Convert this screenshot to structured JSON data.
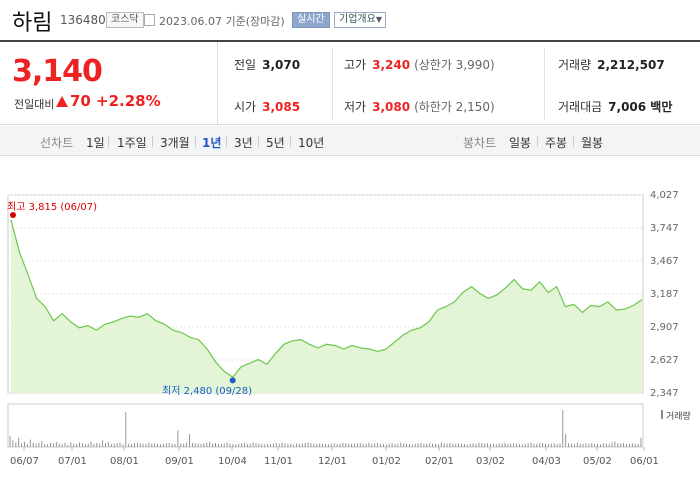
{
  "header": {
    "name": "하림",
    "code": "136480",
    "market": "코스닥",
    "date_text": "2023.06.07  기준(장마감)",
    "realtime": "실시간",
    "select": "기업개요"
  },
  "summary": {
    "price": "3,140",
    "change_label": "전일대비",
    "change_value": "70",
    "change_pct": "+2.28%",
    "prev_label": "전일",
    "prev_value": "3,070",
    "high_label": "고가",
    "high_value": "3,240",
    "upper_limit": "(상한가 3,990)",
    "volume_label": "거래량",
    "volume_value": "2,212,507",
    "open_label": "시가",
    "open_value": "3,085",
    "low_label": "저가",
    "low_value": "3,080",
    "lower_limit": "(하한가 2,150)",
    "amount_label": "거래대금",
    "amount_value": "7,006 백만"
  },
  "period_bar": {
    "line_label": "선차트",
    "periods": [
      "1일",
      "1주일",
      "3개월",
      "1년",
      "3년",
      "5년",
      "10년"
    ],
    "active_index": 3,
    "candle_label": "봉차트",
    "candles": [
      "일봉",
      "주봉",
      "월봉"
    ]
  },
  "chart_data": {
    "type": "area",
    "y_ticks": [
      "4,027",
      "3,747",
      "3,467",
      "3,187",
      "2,907",
      "2,627",
      "2,347"
    ],
    "ylim": [
      2347,
      4027
    ],
    "x_ticks": [
      "06/07",
      "07/01",
      "08/01",
      "09/01",
      "10/04",
      "11/01",
      "12/01",
      "01/02",
      "02/01",
      "03/02",
      "04/03",
      "05/02",
      "06/01"
    ],
    "high_annotation": "최고  3,815 (06/07)",
    "low_annotation": "최저  2,480 (09/28)",
    "volume_label": "거래량",
    "colors": {
      "line": "#6ec64e",
      "fill": "#e3f5d6",
      "high": "#d80000",
      "low": "#1a5fc8",
      "volume": "#888888"
    },
    "points": [
      [
        "06/07",
        3815
      ],
      [
        "06/09",
        3540
      ],
      [
        "06/13",
        3350
      ],
      [
        "06/16",
        3150
      ],
      [
        "06/20",
        3080
      ],
      [
        "06/23",
        2960
      ],
      [
        "06/28",
        3020
      ],
      [
        "07/03",
        2950
      ],
      [
        "07/07",
        2900
      ],
      [
        "07/12",
        2920
      ],
      [
        "07/18",
        2880
      ],
      [
        "07/24",
        2930
      ],
      [
        "07/28",
        2950
      ],
      [
        "08/01",
        2980
      ],
      [
        "08/04",
        3000
      ],
      [
        "08/09",
        2990
      ],
      [
        "08/14",
        3020
      ],
      [
        "08/18",
        2960
      ],
      [
        "08/23",
        2930
      ],
      [
        "08/28",
        2880
      ],
      [
        "09/01",
        2860
      ],
      [
        "09/06",
        2820
      ],
      [
        "09/12",
        2800
      ],
      [
        "09/18",
        2720
      ],
      [
        "09/22",
        2610
      ],
      [
        "09/26",
        2530
      ],
      [
        "09/28",
        2480
      ],
      [
        "10/04",
        2570
      ],
      [
        "10/10",
        2600
      ],
      [
        "10/16",
        2630
      ],
      [
        "10/20",
        2590
      ],
      [
        "10/25",
        2680
      ],
      [
        "11/01",
        2760
      ],
      [
        "11/06",
        2790
      ],
      [
        "11/10",
        2800
      ],
      [
        "11/16",
        2760
      ],
      [
        "11/21",
        2730
      ],
      [
        "11/27",
        2760
      ],
      [
        "12/01",
        2750
      ],
      [
        "12/06",
        2720
      ],
      [
        "12/12",
        2750
      ],
      [
        "12/18",
        2730
      ],
      [
        "12/22",
        2720
      ],
      [
        "12/28",
        2700
      ],
      [
        "01/02",
        2720
      ],
      [
        "01/06",
        2780
      ],
      [
        "01/12",
        2840
      ],
      [
        "01/18",
        2880
      ],
      [
        "01/25",
        2900
      ],
      [
        "02/01",
        2950
      ],
      [
        "02/06",
        3050
      ],
      [
        "02/10",
        3080
      ],
      [
        "02/15",
        3120
      ],
      [
        "02/21",
        3200
      ],
      [
        "02/27",
        3250
      ],
      [
        "03/02",
        3190
      ],
      [
        "03/07",
        3150
      ],
      [
        "03/13",
        3180
      ],
      [
        "03/17",
        3240
      ],
      [
        "03/23",
        3310
      ],
      [
        "03/28",
        3230
      ],
      [
        "04/03",
        3220
      ],
      [
        "04/07",
        3290
      ],
      [
        "04/13",
        3200
      ],
      [
        "04/19",
        3250
      ],
      [
        "04/25",
        3080
      ],
      [
        "05/02",
        3100
      ],
      [
        "05/08",
        3030
      ],
      [
        "05/12",
        3090
      ],
      [
        "05/18",
        3080
      ],
      [
        "05/24",
        3120
      ],
      [
        "05/30",
        3050
      ],
      [
        "06/01",
        3060
      ],
      [
        "06/05",
        3090
      ],
      [
        "06/07",
        3140
      ]
    ],
    "volume": [
      30,
      18,
      12,
      25,
      10,
      14,
      8,
      20,
      12,
      9,
      11,
      16,
      8,
      7,
      12,
      10,
      14,
      9,
      8,
      11,
      6,
      13,
      9,
      8,
      12,
      10,
      7,
      9,
      14,
      8,
      11,
      9,
      18,
      10,
      13,
      8,
      9,
      10,
      12,
      7,
      95,
      9,
      8,
      11,
      12,
      10,
      9,
      8,
      12,
      9,
      10,
      8,
      7,
      9,
      10,
      11,
      9,
      8,
      45,
      10,
      9,
      12,
      35,
      11,
      10,
      9,
      8,
      10,
      12,
      14,
      9,
      11,
      8,
      9,
      10,
      12,
      9,
      8,
      7,
      9,
      10,
      11,
      8,
      9,
      12,
      10,
      9,
      8,
      7,
      9,
      8,
      10,
      11,
      9,
      12,
      10,
      8,
      9,
      7,
      10,
      8,
      9,
      11,
      12,
      10,
      9,
      8,
      10,
      9,
      8,
      7,
      9,
      10,
      8,
      9,
      11,
      10,
      9,
      8,
      9,
      10,
      11,
      9,
      8,
      12,
      9,
      10,
      11,
      9,
      8,
      7,
      9,
      10,
      8,
      9,
      12,
      10,
      9,
      8,
      7,
      9,
      10,
      11,
      8,
      9,
      10,
      9,
      8,
      7,
      12,
      10,
      9,
      11,
      8,
      9,
      10,
      9,
      8,
      7,
      9,
      10,
      8,
      12,
      11,
      9,
      10,
      8,
      9,
      7,
      10,
      9,
      11,
      8,
      9,
      10,
      9,
      8,
      7,
      9,
      10,
      12,
      9,
      8,
      10,
      11,
      9,
      8,
      9,
      10,
      8,
      9,
      100,
      35,
      10,
      9,
      8,
      12,
      9,
      8,
      10,
      9,
      11,
      8,
      9,
      7,
      10,
      9,
      8,
      12,
      15,
      10,
      9,
      11,
      8,
      9,
      10,
      9,
      8,
      25
    ]
  }
}
